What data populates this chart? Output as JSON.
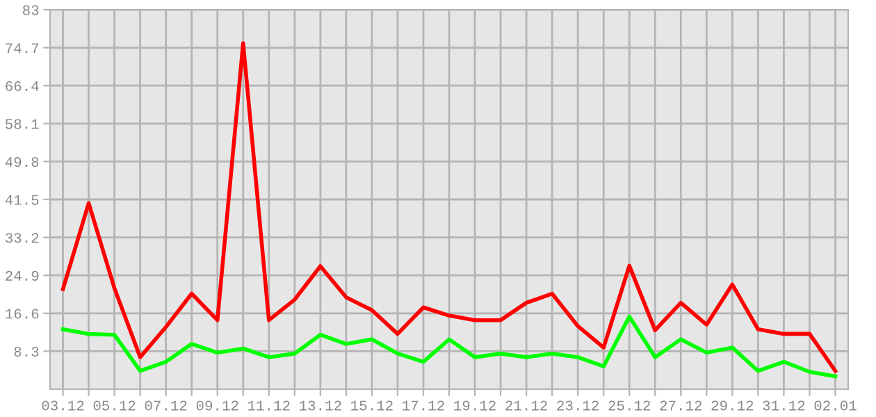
{
  "chart_data": {
    "type": "line",
    "categories": [
      "03.12",
      null,
      "05.12",
      null,
      "07.12",
      null,
      "09.12",
      null,
      "11.12",
      null,
      "13.12",
      null,
      "15.12",
      null,
      "17.12",
      null,
      "19.12",
      null,
      "21.12",
      null,
      "23.12",
      null,
      "25.12",
      null,
      "27.12",
      null,
      "29.12",
      null,
      "31.12",
      null,
      "02.01"
    ],
    "series": [
      {
        "color": "#ff0000",
        "values": [
          21.9,
          40.7,
          22.1,
          7.0,
          13.6,
          20.9,
          15.1,
          75.7,
          15.1,
          19.6,
          26.9,
          20.1,
          17.3,
          12.1,
          17.9,
          16.1,
          15.1,
          15.1,
          18.9,
          20.9,
          13.8,
          9.1,
          27.0,
          12.9,
          18.9,
          14.1,
          22.9,
          13.1,
          12.1,
          12.1,
          4.0
        ]
      },
      {
        "color": "#00ff00",
        "values": [
          13.1,
          12.1,
          11.9,
          4.0,
          6.0,
          9.9,
          8.0,
          8.9,
          7.0,
          7.8,
          11.9,
          9.9,
          10.9,
          7.8,
          6.0,
          10.9,
          7.0,
          7.8,
          7.0,
          7.8,
          7.0,
          5.0,
          15.9,
          7.0,
          10.9,
          8.0,
          9.1,
          4.0,
          6.0,
          3.8,
          2.8
        ]
      }
    ],
    "ylim": [
      0,
      83
    ],
    "yticks": [
      8.3,
      16.6,
      24.9,
      33.2,
      41.5,
      49.8,
      58.1,
      66.4,
      74.7,
      83
    ],
    "grid": true,
    "marker": "none",
    "line_style": "solid"
  }
}
